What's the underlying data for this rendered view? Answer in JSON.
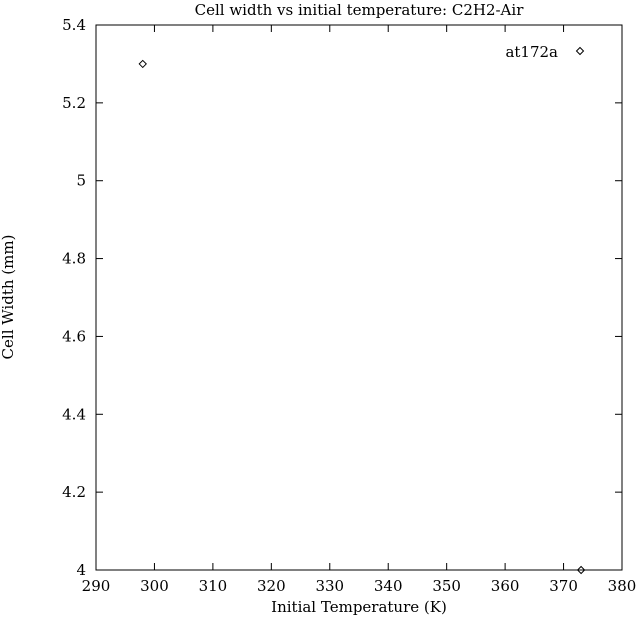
{
  "chart_data": {
    "type": "scatter",
    "title": "Cell width vs initial temperature: C2H2-Air",
    "xlabel": "Initial Temperature (K)",
    "ylabel": "Cell Width (mm)",
    "xlim": [
      290,
      380
    ],
    "ylim": [
      4,
      5.4
    ],
    "xticks": [
      290,
      300,
      310,
      320,
      330,
      340,
      350,
      360,
      370,
      380
    ],
    "yticks": [
      4,
      4.2,
      4.4,
      4.6,
      4.8,
      5,
      5.2,
      5.4
    ],
    "xtick_labels": [
      "290",
      "300",
      "310",
      "320",
      "330",
      "340",
      "350",
      "360",
      "370",
      "380"
    ],
    "ytick_labels": [
      "4",
      "4.2",
      "4.4",
      "4.6",
      "4.8",
      "5",
      "5.2",
      "5.4"
    ],
    "grid": false,
    "legend_position": "top-right",
    "marker": "diamond",
    "series": [
      {
        "name": "at172a",
        "x": [
          298,
          373
        ],
        "y": [
          5.3,
          4.0
        ]
      }
    ]
  }
}
